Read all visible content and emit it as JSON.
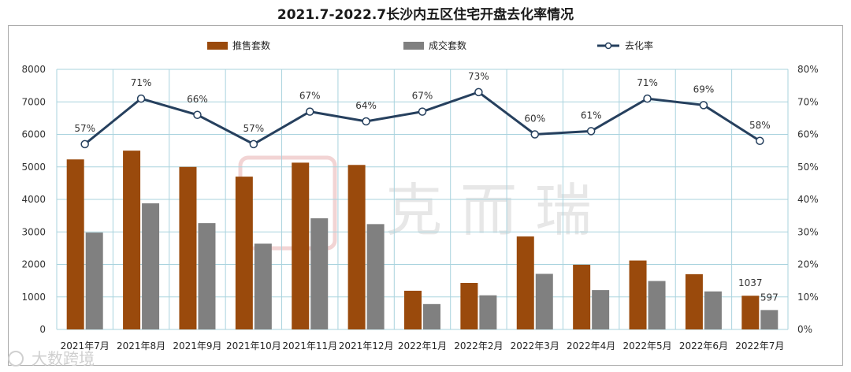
{
  "chart_data": {
    "type": "bar",
    "title": "2021.7-2022.7长沙内五区住宅开盘去化率情况",
    "categories": [
      "2021年7月",
      "2021年8月",
      "2021年9月",
      "2021年10月",
      "2021年11月",
      "2021年12月",
      "2022年1月",
      "2022年2月",
      "2022年3月",
      "2022年4月",
      "2022年5月",
      "2022年6月",
      "2022年7月"
    ],
    "series": [
      {
        "name": "推售套数",
        "kind": "bar",
        "color": "#9a4a0c",
        "values": [
          5230,
          5500,
          5000,
          4700,
          5130,
          5060,
          1190,
          1430,
          2860,
          1990,
          2120,
          1700,
          1037
        ]
      },
      {
        "name": "成交套数",
        "kind": "bar",
        "color": "#808080",
        "values": [
          2980,
          3880,
          3270,
          2640,
          3420,
          3240,
          780,
          1050,
          1710,
          1210,
          1490,
          1170,
          597
        ]
      },
      {
        "name": "去化率",
        "kind": "line",
        "axis": "right",
        "color": "#26405e",
        "values": [
          57,
          71,
          66,
          57,
          67,
          64,
          67,
          73,
          60,
          61,
          71,
          69,
          58
        ]
      }
    ],
    "y_left": {
      "ticks": [
        "0",
        "1000",
        "2000",
        "3000",
        "4000",
        "5000",
        "6000",
        "7000",
        "8000"
      ],
      "ylim": [
        0,
        8000
      ]
    },
    "y_right": {
      "ticks": [
        "0%",
        "10%",
        "20%",
        "30%",
        "40%",
        "50%",
        "60%",
        "70%",
        "80%"
      ],
      "ylim": [
        0,
        80
      ]
    },
    "rate_labels": [
      "57%",
      "71%",
      "66%",
      "57%",
      "67%",
      "64%",
      "67%",
      "73%",
      "60%",
      "61%",
      "71%",
      "69%",
      "58%"
    ],
    "bar_labels": [
      {
        "category_index": 12,
        "push": "1037",
        "deal": "597"
      }
    ],
    "legend": {
      "position": "top",
      "entries": [
        "推售套数",
        "成交套数",
        "去化率"
      ]
    },
    "grid": true
  },
  "watermark": {
    "text": "克 而 瑞"
  },
  "logo": {
    "text": "大数跨境"
  }
}
